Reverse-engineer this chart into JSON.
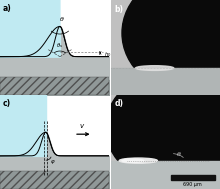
{
  "fig_width": 2.2,
  "fig_height": 1.89,
  "dpi": 100,
  "panel_labels": [
    "a)",
    "b)",
    "c)",
    "d)"
  ],
  "bg_color": "#c0eaf2",
  "substrate_color": "#b8bebe",
  "substrate_dark": "#a0a8a8",
  "hatch_face": "#909898",
  "scale_bar_text": "690 μm",
  "photo_bg": "#c8c8c8",
  "droplet_color": "#0a0a0a"
}
